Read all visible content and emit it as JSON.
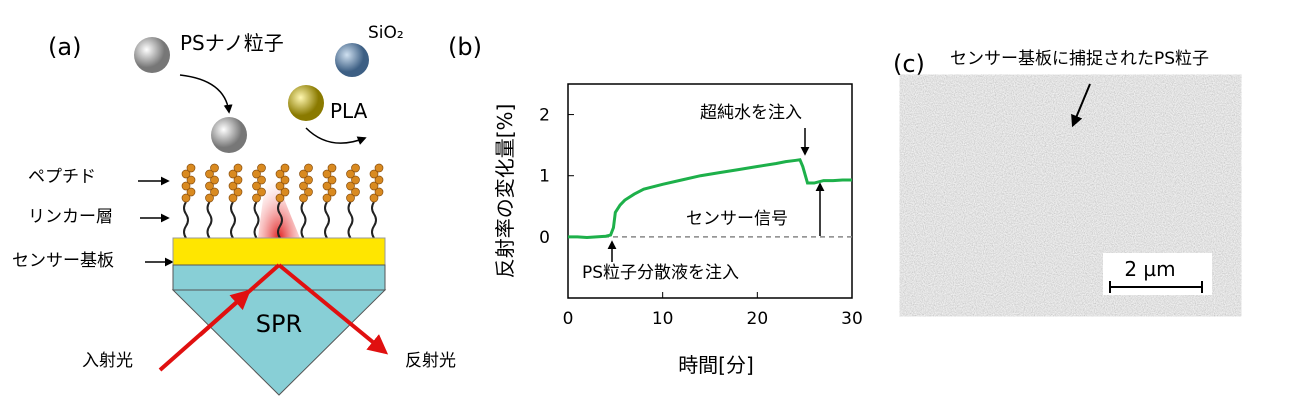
{
  "panel_a": {
    "label": "(a)",
    "ps_particle": "PSナノ粒子",
    "sio2": "SiO₂",
    "pla": "PLA",
    "peptide": "ペプチド",
    "linker": "リンカー層",
    "substrate": "センサー基板",
    "spr": "SPR",
    "incident": "入射光",
    "reflected": "反射光"
  },
  "chart_data": {
    "type": "line",
    "panel_label": "(b)",
    "x_label": "時間[分]",
    "y_label": "反射率の変化量[%]",
    "xlim": [
      0,
      30
    ],
    "xticks": [
      0,
      10,
      20,
      30
    ],
    "ylim": [
      -1,
      2.5
    ],
    "yticks": [
      0,
      1,
      2
    ],
    "reference_line": 0,
    "series": [
      {
        "name": "反射率",
        "color": "#1db04a",
        "x": [
          0,
          1,
          2,
          3,
          4,
          4.5,
          4.8,
          5,
          5.5,
          6,
          7,
          8,
          10,
          12,
          14,
          16,
          18,
          20,
          22,
          23,
          24,
          24.5,
          24.8,
          25.3,
          26,
          27,
          28,
          29,
          30
        ],
        "values": [
          0,
          0,
          -0.01,
          0,
          0.01,
          0.03,
          0.15,
          0.4,
          0.52,
          0.6,
          0.7,
          0.78,
          0.86,
          0.93,
          1.0,
          1.05,
          1.1,
          1.15,
          1.2,
          1.23,
          1.25,
          1.26,
          1.15,
          0.88,
          0.88,
          0.92,
          0.92,
          0.93,
          0.93
        ]
      }
    ],
    "annotations": [
      "超純水を注入",
      "センサー信号",
      "PS粒子分散液を注入"
    ]
  },
  "panel_c": {
    "label": "(c)",
    "caption": "センサー基板に捕捉されたPS粒子",
    "scale_bar": "2 µm"
  }
}
